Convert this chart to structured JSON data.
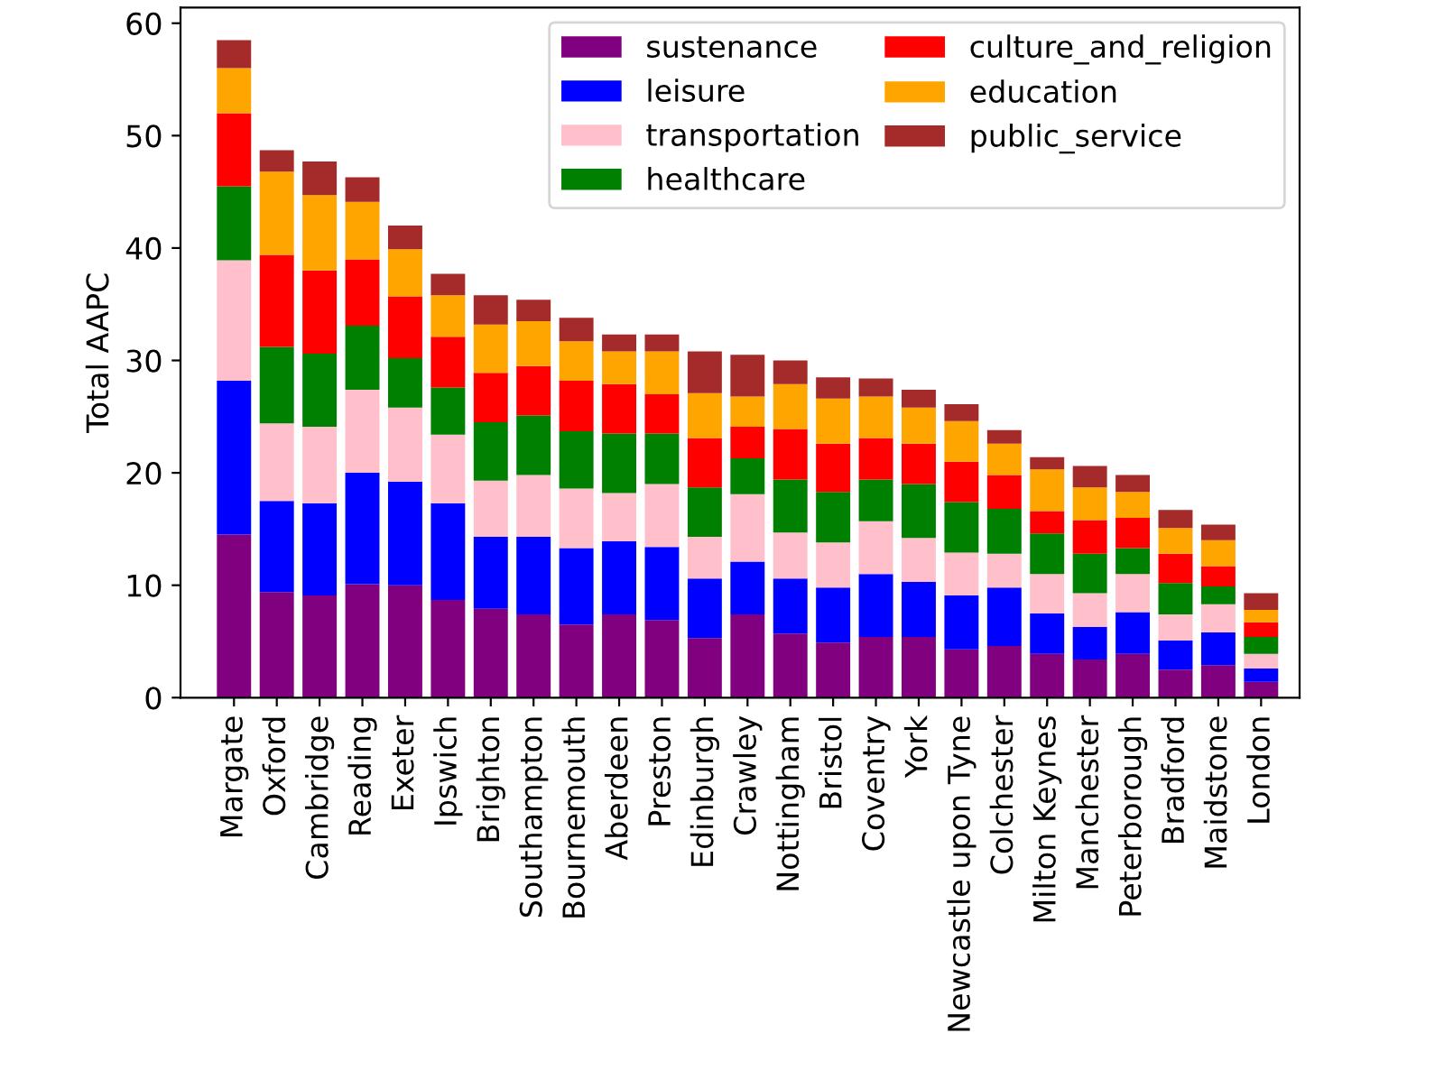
{
  "chart_data": {
    "type": "bar",
    "stacked": true,
    "ylabel": "Total AAPC",
    "categories": [
      "Margate",
      "Oxford",
      "Cambridge",
      "Reading",
      "Exeter",
      "Ipswich",
      "Brighton",
      "Southampton",
      "Bournemouth",
      "Aberdeen",
      "Preston",
      "Edinburgh",
      "Crawley",
      "Nottingham",
      "Bristol",
      "Coventry",
      "York",
      "Newcastle upon Tyne",
      "Colchester",
      "Milton Keynes",
      "Manchester",
      "Peterborough",
      "Bradford",
      "Maidstone",
      "London"
    ],
    "series": [
      {
        "name": "sustenance",
        "color": "#800080",
        "values": [
          14.5,
          9.4,
          9.1,
          10.1,
          10.0,
          8.7,
          7.9,
          7.4,
          6.5,
          7.4,
          6.9,
          5.3,
          7.4,
          5.7,
          4.9,
          5.4,
          5.4,
          4.3,
          4.6,
          3.9,
          3.4,
          3.9,
          2.5,
          2.9,
          1.4
        ]
      },
      {
        "name": "leisure",
        "color": "#0000ff",
        "values": [
          13.7,
          8.1,
          8.2,
          9.9,
          9.2,
          8.6,
          6.4,
          6.9,
          6.8,
          6.5,
          6.5,
          5.3,
          4.7,
          4.9,
          4.9,
          5.6,
          4.9,
          4.8,
          5.2,
          3.6,
          2.9,
          3.7,
          2.6,
          2.9,
          1.2
        ]
      },
      {
        "name": "transportation",
        "color": "#ffc0cb",
        "values": [
          10.7,
          6.9,
          6.8,
          7.4,
          6.6,
          6.1,
          5.0,
          5.5,
          5.3,
          4.3,
          5.6,
          3.7,
          6.0,
          4.1,
          4.0,
          4.7,
          3.9,
          3.8,
          3.0,
          3.5,
          3.0,
          3.4,
          2.3,
          2.5,
          1.3
        ]
      },
      {
        "name": "healthcare",
        "color": "#008000",
        "values": [
          6.6,
          6.8,
          6.5,
          5.7,
          4.4,
          4.2,
          5.2,
          5.3,
          5.1,
          5.3,
          4.5,
          4.4,
          3.2,
          4.7,
          4.5,
          3.7,
          4.8,
          4.5,
          4.0,
          3.6,
          3.5,
          2.3,
          2.8,
          1.6,
          1.5
        ]
      },
      {
        "name": "culture_and_religion",
        "color": "#ff0000",
        "values": [
          6.5,
          8.2,
          7.4,
          5.9,
          5.5,
          4.5,
          4.4,
          4.4,
          4.5,
          4.4,
          3.5,
          4.4,
          2.8,
          4.5,
          4.3,
          3.7,
          3.6,
          3.6,
          3.0,
          2.0,
          3.0,
          2.7,
          2.6,
          1.8,
          1.3
        ]
      },
      {
        "name": "education",
        "color": "#ffa500",
        "values": [
          4.0,
          7.4,
          6.7,
          5.1,
          4.2,
          3.7,
          4.3,
          4.0,
          3.5,
          2.9,
          3.8,
          4.0,
          2.7,
          4.0,
          4.0,
          3.7,
          3.2,
          3.6,
          2.8,
          3.7,
          2.9,
          2.3,
          2.3,
          2.3,
          1.1
        ]
      },
      {
        "name": "public_service",
        "color": "#a52a2a",
        "values": [
          2.5,
          1.9,
          3.0,
          2.2,
          2.1,
          1.9,
          2.6,
          1.9,
          2.1,
          1.5,
          1.5,
          3.7,
          3.7,
          2.1,
          1.9,
          1.6,
          1.6,
          1.5,
          1.2,
          1.1,
          1.9,
          1.5,
          1.6,
          1.4,
          1.5
        ]
      }
    ],
    "ylim": [
      0,
      61.4
    ],
    "yticks": [
      0,
      10,
      20,
      30,
      40,
      50,
      60
    ],
    "grid": false,
    "legend": "top right"
  }
}
